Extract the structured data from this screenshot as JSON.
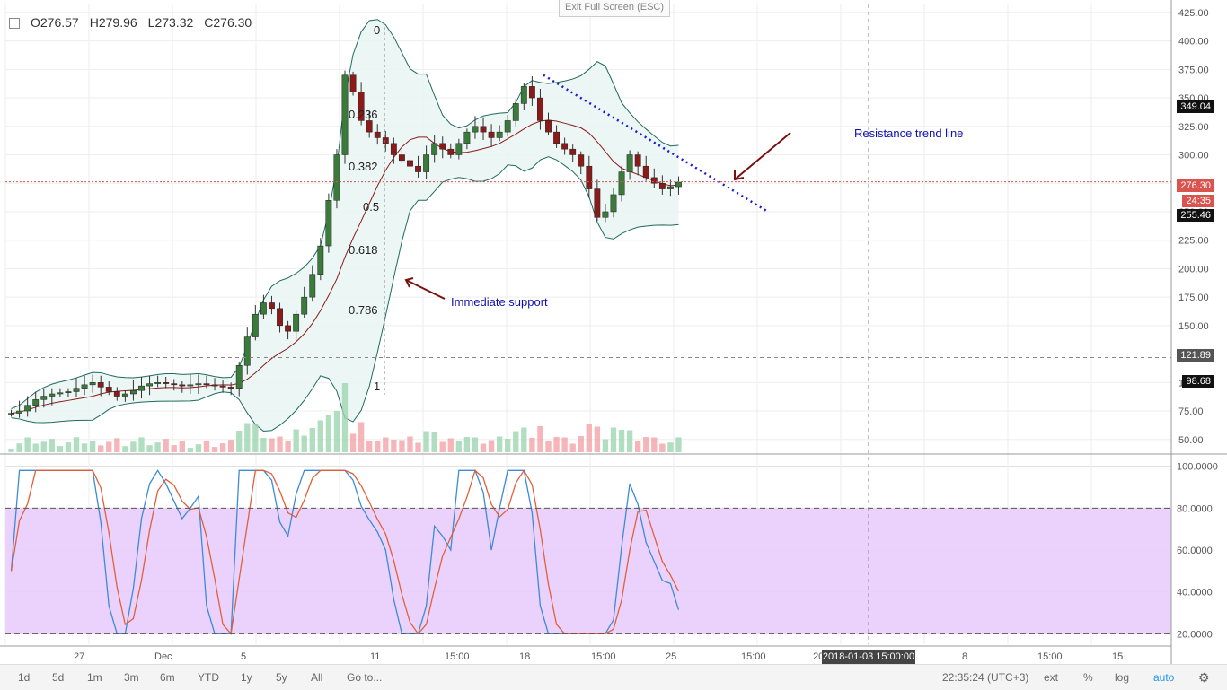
{
  "header": {
    "open": "O276.57",
    "high": "H279.96",
    "low": "L273.32",
    "close": "C276.30"
  },
  "exit_full_screen": "Exit Full Screen (ESC)",
  "price_axis_labels": [
    "425.00",
    "400.00",
    "375.00",
    "350.00",
    "325.00",
    "300.00",
    "275.00",
    "250.00",
    "225.00",
    "200.00",
    "175.00",
    "150.00",
    "125.00",
    "100.00",
    "75.00",
    "50.00"
  ],
  "price_tags": {
    "resistance_level": "349.04",
    "last_price": "276.30",
    "countdown": "24:35",
    "support_level": "255.46",
    "crosshair": "121.89",
    "lower_level": "98.68"
  },
  "osc_axis_labels": [
    "100.0000",
    "80.0000",
    "60.0000",
    "40.0000",
    "20.0000"
  ],
  "time_axis_labels": [
    "27",
    "Dec",
    "5",
    "11",
    "15:00",
    "18",
    "15:00",
    "25",
    "15:00",
    "201",
    "8",
    "15:00",
    "15"
  ],
  "crosshair_date": "2018-01-03 15:00:00",
  "fib_levels": [
    "0",
    "0.236",
    "0.382",
    "0.5",
    "0.618",
    "0.786",
    "1"
  ],
  "annotations": {
    "resistance": "Resistance trend line",
    "support": "Immediate support"
  },
  "toolbar": {
    "ranges": [
      "1d",
      "5d",
      "1m",
      "3m",
      "6m",
      "YTD",
      "1y",
      "5y",
      "All"
    ],
    "goto": "Go to...",
    "clock": "22:35:24 (UTC+3)",
    "ext": "ext",
    "percent": "%",
    "log": "log",
    "auto": "auto"
  },
  "colors": {
    "up": "#3a7a3a",
    "down": "#8b1a1a",
    "band_fill": "#e8f5f3",
    "band_line": "#1f6b5c",
    "osc_bg": "#e9cdfc",
    "trend": "#1a1ad0",
    "arrow": "#7a1010",
    "last_price_tag": "#d9534f"
  },
  "chart_data": {
    "type": "candlestick",
    "price_range": [
      38,
      432
    ],
    "close_prices": [
      73,
      75,
      80,
      85,
      88,
      90,
      91,
      92,
      95,
      98,
      100,
      96,
      92,
      88,
      90,
      93,
      97,
      99,
      100,
      99,
      98,
      97,
      98,
      99,
      98,
      97,
      96,
      95,
      115,
      140,
      160,
      170,
      165,
      150,
      145,
      160,
      175,
      195,
      220,
      260,
      300,
      370,
      355,
      330,
      320,
      315,
      310,
      300,
      295,
      290,
      285,
      300,
      310,
      305,
      300,
      310,
      320,
      325,
      320,
      315,
      320,
      330,
      345,
      360,
      350,
      330,
      320,
      310,
      305,
      300,
      290,
      270,
      245,
      250,
      265,
      285,
      300,
      290,
      280,
      275,
      270,
      272,
      276
    ],
    "stochastic": {
      "upper_band": 80,
      "lower_band": 20,
      "range": [
        15,
        105
      ]
    }
  }
}
